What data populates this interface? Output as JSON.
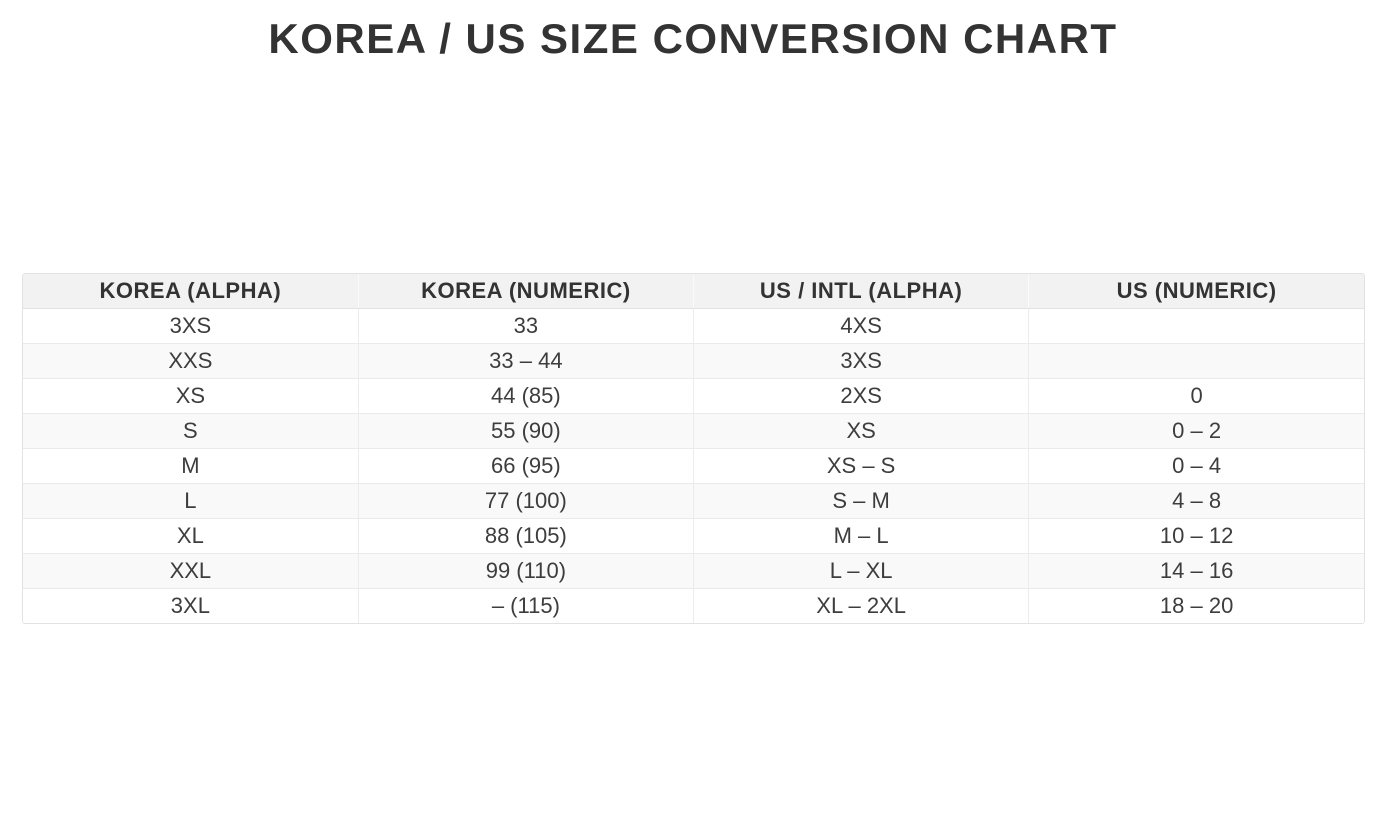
{
  "page": {
    "title": "KOREA / US SIZE CONVERSION CHART"
  },
  "colors": {
    "title_text": "#333333",
    "header_bg": "#f2f2f2",
    "row_alt_bg": "#f9f9f9",
    "border": "#e2e2e2",
    "body_text": "#3d3d3d",
    "page_bg": "#ffffff"
  },
  "chart_data": {
    "type": "table",
    "title": "KOREA / US SIZE CONVERSION CHART",
    "columns": [
      "KOREA (ALPHA)",
      "KOREA (NUMERIC)",
      "US / INTL (ALPHA)",
      "US (NUMERIC)"
    ],
    "rows": [
      [
        "3XS",
        "33",
        "4XS",
        ""
      ],
      [
        "XXS",
        "33 – 44",
        "3XS",
        ""
      ],
      [
        "XS",
        "44 (85)",
        "2XS",
        "0"
      ],
      [
        "S",
        "55 (90)",
        "XS",
        "0 – 2"
      ],
      [
        "M",
        "66 (95)",
        "XS – S",
        "0 – 4"
      ],
      [
        "L",
        "77 (100)",
        "S – M",
        "4 – 8"
      ],
      [
        "XL",
        "88 (105)",
        "M – L",
        "10 – 12"
      ],
      [
        "XXL",
        "99 (110)",
        "L – XL",
        "14 – 16"
      ],
      [
        "3XL",
        "– (115)",
        "XL – 2XL",
        "18 – 20"
      ]
    ],
    "layout": {
      "zebra_striping": true,
      "header_style": "bold on light gray",
      "alignment": "center"
    }
  }
}
